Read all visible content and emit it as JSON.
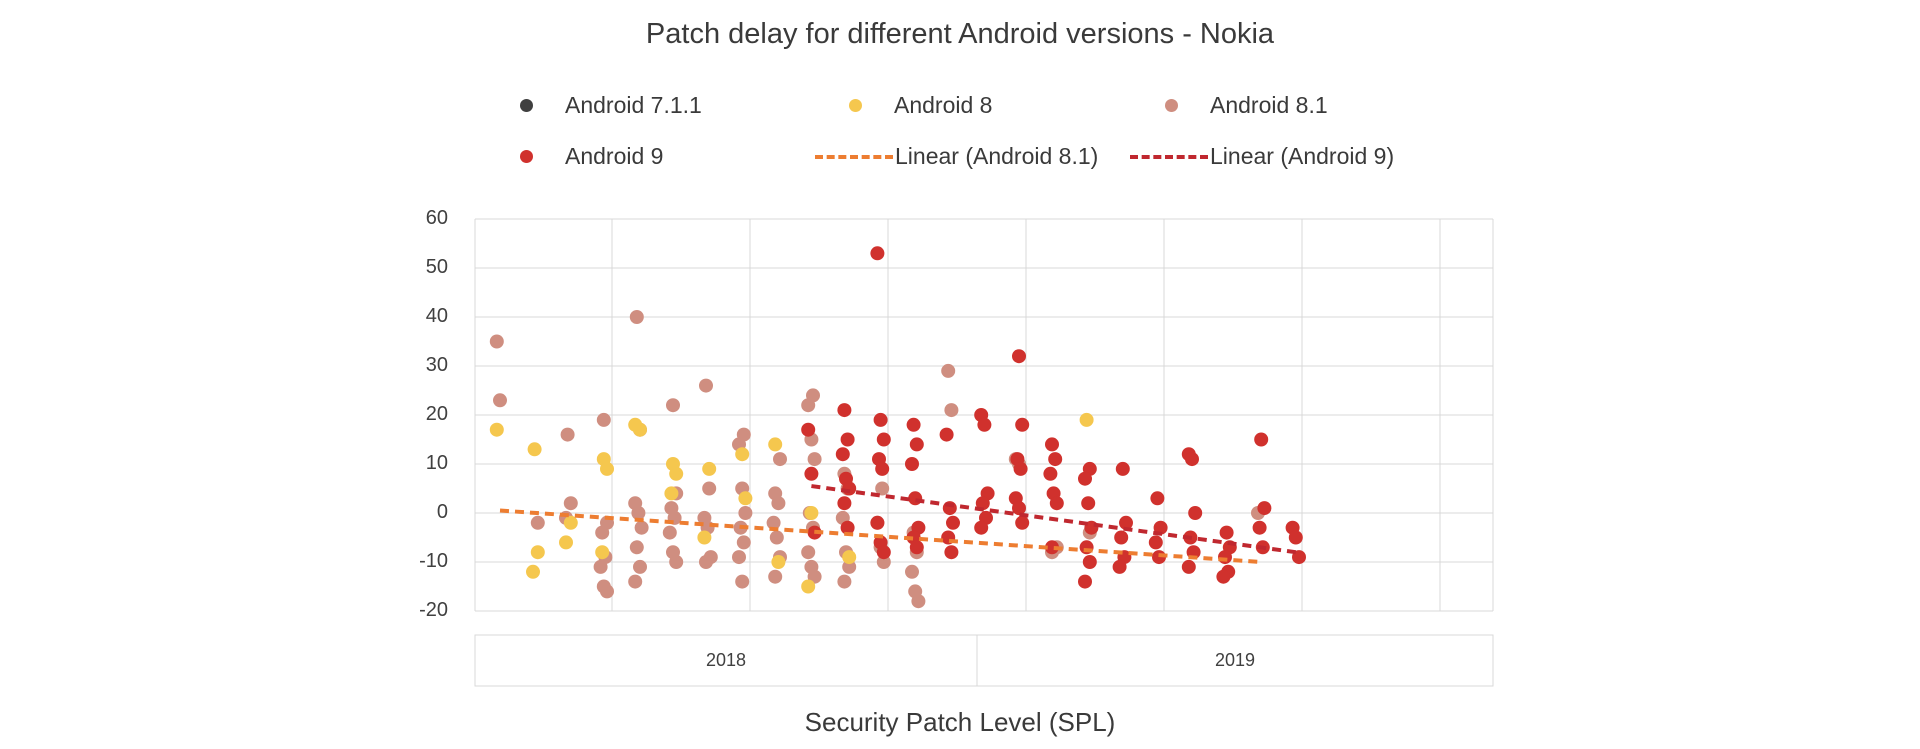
{
  "chart_data": {
    "type": "scatter",
    "title": "Patch delay for different Android versions - Nokia",
    "xlabel": "Security Patch Level (SPL)",
    "ylabel": "",
    "ylim": [
      -20,
      60
    ],
    "yticks": [
      "60",
      "50",
      "40",
      "30",
      "20",
      "10",
      "0",
      "-10",
      "-20"
    ],
    "categories": [
      "2018",
      "2019"
    ],
    "grid": true,
    "legend_position": "top",
    "month_slots": [
      "2017-12",
      "2018-01",
      "2018-02",
      "2018-03",
      "2018-04",
      "2018-05",
      "2018-06",
      "2018-07",
      "2018-08",
      "2018-09",
      "2018-10",
      "2018-11",
      "2018-12",
      "2019-01",
      "2019-02",
      "2019-03",
      "2019-04",
      "2019-05",
      "2019-06",
      "2019-07",
      "2019-08",
      "2019-09",
      "2019-10",
      "2019-11"
    ],
    "series": [
      {
        "name": "Android 7.1.1",
        "color": "#404040",
        "points": []
      },
      {
        "name": "Android 8",
        "color": "#F5C74E",
        "points": [
          [
            "2017-12",
            17
          ],
          [
            "2018-01",
            13
          ],
          [
            "2018-01",
            -8
          ],
          [
            "2018-01",
            -12
          ],
          [
            "2018-02",
            -2
          ],
          [
            "2018-02",
            -6
          ],
          [
            "2018-03",
            11
          ],
          [
            "2018-03",
            9
          ],
          [
            "2018-03",
            -8
          ],
          [
            "2018-04",
            17
          ],
          [
            "2018-04",
            18
          ],
          [
            "2018-05",
            10
          ],
          [
            "2018-05",
            8
          ],
          [
            "2018-05",
            4
          ],
          [
            "2018-06",
            9
          ],
          [
            "2018-06",
            -5
          ],
          [
            "2018-07",
            12
          ],
          [
            "2018-07",
            3
          ],
          [
            "2018-08",
            14
          ],
          [
            "2018-08",
            -10
          ],
          [
            "2018-09",
            -15
          ],
          [
            "2018-09",
            0
          ],
          [
            "2018-10",
            -9
          ],
          [
            "2019-05",
            19
          ]
        ]
      },
      {
        "name": "Android 8.1",
        "color": "#CF8E80",
        "points": [
          [
            "2017-12",
            35
          ],
          [
            "2017-12",
            23
          ],
          [
            "2018-01",
            -2
          ],
          [
            "2018-02",
            16
          ],
          [
            "2018-02",
            2
          ],
          [
            "2018-02",
            -1
          ],
          [
            "2018-03",
            19
          ],
          [
            "2018-03",
            -2
          ],
          [
            "2018-03",
            -4
          ],
          [
            "2018-03",
            -9
          ],
          [
            "2018-03",
            -11
          ],
          [
            "2018-03",
            -15
          ],
          [
            "2018-03",
            -16
          ],
          [
            "2018-04",
            40
          ],
          [
            "2018-04",
            17
          ],
          [
            "2018-04",
            2
          ],
          [
            "2018-04",
            0
          ],
          [
            "2018-04",
            -3
          ],
          [
            "2018-04",
            -7
          ],
          [
            "2018-04",
            -11
          ],
          [
            "2018-04",
            -14
          ],
          [
            "2018-05",
            22
          ],
          [
            "2018-05",
            4
          ],
          [
            "2018-05",
            1
          ],
          [
            "2018-05",
            -1
          ],
          [
            "2018-05",
            -4
          ],
          [
            "2018-05",
            -8
          ],
          [
            "2018-05",
            -10
          ],
          [
            "2018-06",
            26
          ],
          [
            "2018-06",
            5
          ],
          [
            "2018-06",
            -1
          ],
          [
            "2018-06",
            -3
          ],
          [
            "2018-06",
            -9
          ],
          [
            "2018-06",
            -10
          ],
          [
            "2018-07",
            16
          ],
          [
            "2018-07",
            14
          ],
          [
            "2018-07",
            5
          ],
          [
            "2018-07",
            0
          ],
          [
            "2018-07",
            -3
          ],
          [
            "2018-07",
            -6
          ],
          [
            "2018-07",
            -9
          ],
          [
            "2018-07",
            -14
          ],
          [
            "2018-08",
            11
          ],
          [
            "2018-08",
            4
          ],
          [
            "2018-08",
            2
          ],
          [
            "2018-08",
            -2
          ],
          [
            "2018-08",
            -5
          ],
          [
            "2018-08",
            -9
          ],
          [
            "2018-08",
            -13
          ],
          [
            "2018-09",
            24
          ],
          [
            "2018-09",
            22
          ],
          [
            "2018-09",
            15
          ],
          [
            "2018-09",
            11
          ],
          [
            "2018-09",
            0
          ],
          [
            "2018-09",
            -3
          ],
          [
            "2018-09",
            -8
          ],
          [
            "2018-09",
            -11
          ],
          [
            "2018-09",
            -13
          ],
          [
            "2018-10",
            8
          ],
          [
            "2018-10",
            5
          ],
          [
            "2018-10",
            -1
          ],
          [
            "2018-10",
            -8
          ],
          [
            "2018-10",
            -11
          ],
          [
            "2018-10",
            -14
          ],
          [
            "2018-11",
            5
          ],
          [
            "2018-11",
            -2
          ],
          [
            "2018-11",
            -7
          ],
          [
            "2018-11",
            -10
          ],
          [
            "2018-12",
            -4
          ],
          [
            "2018-12",
            -8
          ],
          [
            "2018-12",
            -12
          ],
          [
            "2018-12",
            -16
          ],
          [
            "2018-12",
            -18
          ],
          [
            "2019-01",
            29
          ],
          [
            "2019-01",
            21
          ],
          [
            "2019-03",
            11
          ],
          [
            "2019-03",
            10
          ],
          [
            "2019-04",
            -7
          ],
          [
            "2019-04",
            -8
          ],
          [
            "2019-05",
            -4
          ],
          [
            "2019-10",
            0
          ]
        ]
      },
      {
        "name": "Android 9",
        "color": "#D0312D",
        "points": [
          [
            "2018-09",
            17
          ],
          [
            "2018-09",
            8
          ],
          [
            "2018-09",
            -4
          ],
          [
            "2018-10",
            21
          ],
          [
            "2018-10",
            15
          ],
          [
            "2018-10",
            12
          ],
          [
            "2018-10",
            7
          ],
          [
            "2018-10",
            5
          ],
          [
            "2018-10",
            2
          ],
          [
            "2018-10",
            -3
          ],
          [
            "2018-11",
            53
          ],
          [
            "2018-11",
            19
          ],
          [
            "2018-11",
            15
          ],
          [
            "2018-11",
            11
          ],
          [
            "2018-11",
            9
          ],
          [
            "2018-11",
            -2
          ],
          [
            "2018-11",
            -6
          ],
          [
            "2018-11",
            -8
          ],
          [
            "2018-12",
            18
          ],
          [
            "2018-12",
            14
          ],
          [
            "2018-12",
            10
          ],
          [
            "2018-12",
            3
          ],
          [
            "2018-12",
            -3
          ],
          [
            "2018-12",
            -5
          ],
          [
            "2018-12",
            -7
          ],
          [
            "2019-01",
            16
          ],
          [
            "2019-01",
            1
          ],
          [
            "2019-01",
            -2
          ],
          [
            "2019-01",
            -5
          ],
          [
            "2019-01",
            -8
          ],
          [
            "2019-02",
            20
          ],
          [
            "2019-02",
            18
          ],
          [
            "2019-02",
            4
          ],
          [
            "2019-02",
            2
          ],
          [
            "2019-02",
            -1
          ],
          [
            "2019-02",
            -3
          ],
          [
            "2019-03",
            32
          ],
          [
            "2019-03",
            18
          ],
          [
            "2019-03",
            11
          ],
          [
            "2019-03",
            9
          ],
          [
            "2019-03",
            3
          ],
          [
            "2019-03",
            1
          ],
          [
            "2019-03",
            -2
          ],
          [
            "2019-04",
            14
          ],
          [
            "2019-04",
            11
          ],
          [
            "2019-04",
            8
          ],
          [
            "2019-04",
            4
          ],
          [
            "2019-04",
            2
          ],
          [
            "2019-04",
            -7
          ],
          [
            "2019-05",
            9
          ],
          [
            "2019-05",
            7
          ],
          [
            "2019-05",
            2
          ],
          [
            "2019-05",
            -3
          ],
          [
            "2019-05",
            -7
          ],
          [
            "2019-05",
            -10
          ],
          [
            "2019-05",
            -14
          ],
          [
            "2019-06",
            9
          ],
          [
            "2019-06",
            -2
          ],
          [
            "2019-06",
            -5
          ],
          [
            "2019-06",
            -9
          ],
          [
            "2019-06",
            -11
          ],
          [
            "2019-07",
            3
          ],
          [
            "2019-07",
            -3
          ],
          [
            "2019-07",
            -6
          ],
          [
            "2019-07",
            -9
          ],
          [
            "2019-08",
            12
          ],
          [
            "2019-08",
            11
          ],
          [
            "2019-08",
            0
          ],
          [
            "2019-08",
            -5
          ],
          [
            "2019-08",
            -8
          ],
          [
            "2019-08",
            -11
          ],
          [
            "2019-09",
            -4
          ],
          [
            "2019-09",
            -7
          ],
          [
            "2019-09",
            -9
          ],
          [
            "2019-09",
            -12
          ],
          [
            "2019-09",
            -13
          ],
          [
            "2019-10",
            15
          ],
          [
            "2019-10",
            1
          ],
          [
            "2019-10",
            -3
          ],
          [
            "2019-10",
            -7
          ],
          [
            "2019-11",
            -3
          ],
          [
            "2019-11",
            -5
          ],
          [
            "2019-11",
            -9
          ]
        ]
      }
    ],
    "trendlines": [
      {
        "name": "Linear (Android 8.1)",
        "color": "#ED7D31",
        "from": [
          "2017-12",
          0.5
        ],
        "to": [
          "2019-10",
          -10
        ]
      },
      {
        "name": "Linear (Android 9)",
        "color": "#C0282F",
        "from": [
          "2018-09",
          5.5
        ],
        "to": [
          "2019-11",
          -8
        ]
      }
    ]
  }
}
